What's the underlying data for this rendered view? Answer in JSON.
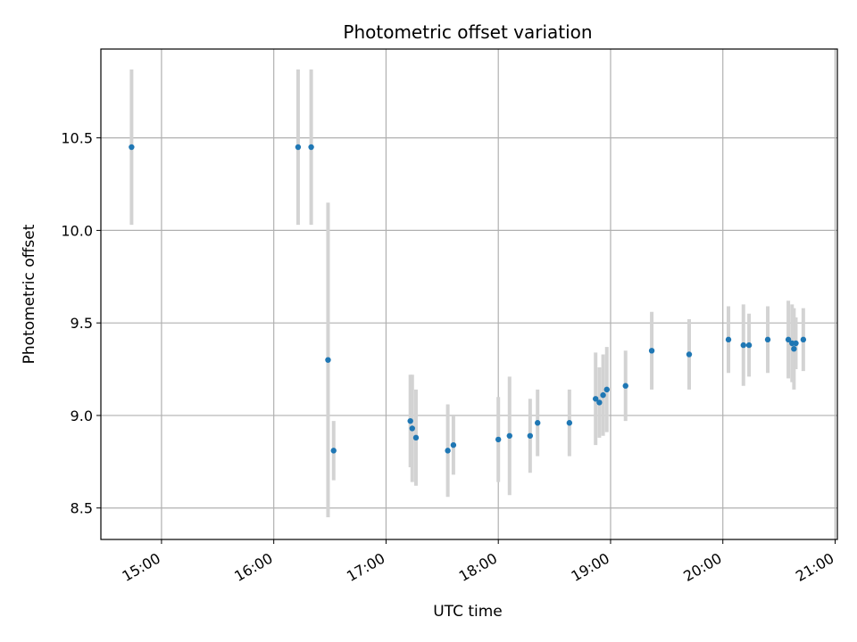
{
  "chart_data": {
    "type": "scatter",
    "title": "Photometric offset variation",
    "xlabel": "UTC time",
    "ylabel": "Photometric offset",
    "x_tick_labels": [
      "15:00",
      "16:00",
      "17:00",
      "18:00",
      "19:00",
      "20:00",
      "21:00"
    ],
    "x_tick_hours": [
      15,
      16,
      17,
      18,
      19,
      20,
      21
    ],
    "y_ticks": [
      8.5,
      9.0,
      9.5,
      10.0,
      10.5
    ],
    "y_tick_labels": [
      "8.5",
      "9.0",
      "9.5",
      "10.0",
      "10.5"
    ],
    "xlim_hours": [
      14.46,
      21.02
    ],
    "ylim": [
      8.33,
      10.98
    ],
    "grid": true,
    "point_color": "#1f77b4",
    "errorbar_color": "#d3d3d3",
    "points": [
      {
        "t": "14:44",
        "y": 10.45,
        "err": 0.42
      },
      {
        "t": "16:13",
        "y": 10.45,
        "err": 0.42
      },
      {
        "t": "16:20",
        "y": 10.45,
        "err": 0.42
      },
      {
        "t": "16:29",
        "y": 9.3,
        "err": 0.85
      },
      {
        "t": "16:32",
        "y": 8.81,
        "err": 0.16
      },
      {
        "t": "17:13",
        "y": 8.97,
        "err": 0.25
      },
      {
        "t": "17:14",
        "y": 8.93,
        "err": 0.29
      },
      {
        "t": "17:16",
        "y": 8.88,
        "err": 0.26
      },
      {
        "t": "17:33",
        "y": 8.81,
        "err": 0.25
      },
      {
        "t": "17:36",
        "y": 8.84,
        "err": 0.16
      },
      {
        "t": "18:00",
        "y": 8.87,
        "err": 0.23
      },
      {
        "t": "18:06",
        "y": 8.89,
        "err": 0.32
      },
      {
        "t": "18:17",
        "y": 8.89,
        "err": 0.2
      },
      {
        "t": "18:21",
        "y": 8.96,
        "err": 0.18
      },
      {
        "t": "18:38",
        "y": 8.96,
        "err": 0.18
      },
      {
        "t": "18:52",
        "y": 9.09,
        "err": 0.25
      },
      {
        "t": "18:54",
        "y": 9.07,
        "err": 0.19
      },
      {
        "t": "18:56",
        "y": 9.11,
        "err": 0.22
      },
      {
        "t": "18:58",
        "y": 9.14,
        "err": 0.23
      },
      {
        "t": "19:08",
        "y": 9.16,
        "err": 0.19
      },
      {
        "t": "19:22",
        "y": 9.35,
        "err": 0.21
      },
      {
        "t": "19:42",
        "y": 9.33,
        "err": 0.19
      },
      {
        "t": "20:03",
        "y": 9.41,
        "err": 0.18
      },
      {
        "t": "20:11",
        "y": 9.38,
        "err": 0.22
      },
      {
        "t": "20:14",
        "y": 9.38,
        "err": 0.17
      },
      {
        "t": "20:24",
        "y": 9.41,
        "err": 0.18
      },
      {
        "t": "20:35",
        "y": 9.41,
        "err": 0.21
      },
      {
        "t": "20:37",
        "y": 9.39,
        "err": 0.21
      },
      {
        "t": "20:38",
        "y": 9.36,
        "err": 0.22
      },
      {
        "t": "20:39",
        "y": 9.39,
        "err": 0.14
      },
      {
        "t": "20:43",
        "y": 9.41,
        "err": 0.17
      }
    ]
  }
}
